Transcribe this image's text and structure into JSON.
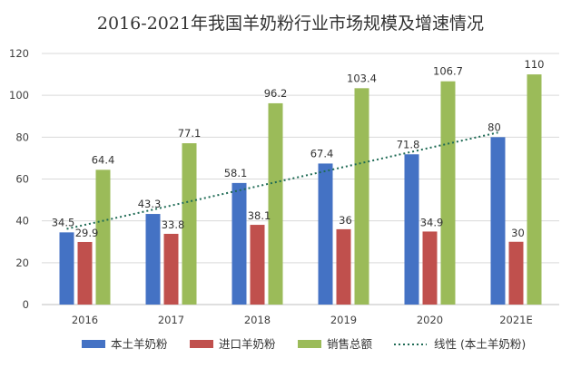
{
  "chart_data": {
    "type": "bar",
    "title": "2016-2021年我国羊奶粉行业市场规模及增速情况",
    "xlabel": "",
    "ylabel": "",
    "categories": [
      "2016",
      "2017",
      "2018",
      "2019",
      "2020",
      "2021E"
    ],
    "ylim": [
      0,
      120
    ],
    "yticks": [
      0,
      20,
      40,
      60,
      80,
      100,
      120
    ],
    "grid": true,
    "legend_position": "bottom",
    "series": [
      {
        "name": "本土羊奶粉",
        "color": "#4472C4",
        "values": [
          34.5,
          43.3,
          58.1,
          67.4,
          71.8,
          80
        ]
      },
      {
        "name": "进口羊奶粉",
        "color": "#C0504D",
        "values": [
          29.9,
          33.8,
          38.1,
          36,
          34.9,
          30
        ]
      },
      {
        "name": "销售总额",
        "color": "#9BBB59",
        "values": [
          64.4,
          77.1,
          96.2,
          103.4,
          106.7,
          110
        ]
      }
    ],
    "trendline": {
      "name": "线性 (本土羊奶粉)",
      "series": "本土羊奶粉",
      "type": "linear",
      "color": "#1F6B55"
    }
  }
}
